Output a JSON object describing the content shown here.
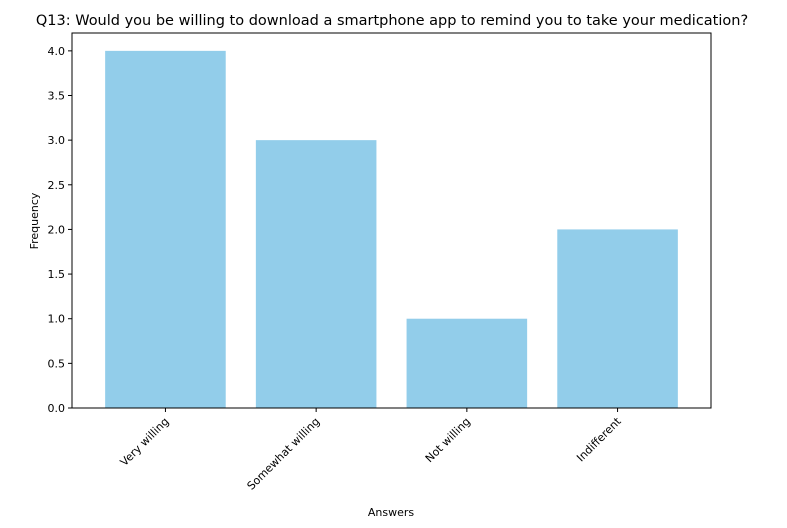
{
  "chart_data": {
    "type": "bar",
    "title": "Q13: Would you be willing to download a smartphone app to remind you to take your medication?",
    "xlabel": "Answers",
    "ylabel": "Frequency",
    "categories": [
      "Very willing",
      "Somewhat willing",
      "Not willing",
      "Indifferent"
    ],
    "values": [
      4,
      3,
      1,
      2
    ],
    "ylim": [
      0,
      4.2
    ],
    "yticks": [
      "0.0",
      "0.5",
      "1.0",
      "1.5",
      "2.0",
      "2.5",
      "3.0",
      "3.5",
      "4.0"
    ],
    "bar_color": "#92cdea",
    "grid": false,
    "legend": "none"
  }
}
